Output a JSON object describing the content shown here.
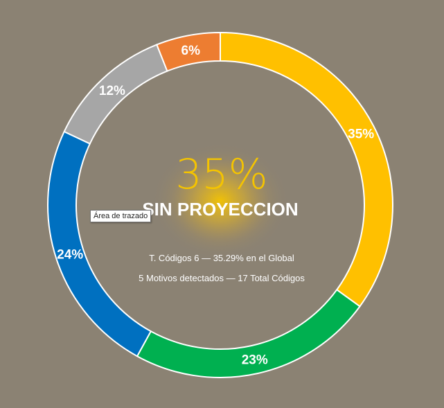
{
  "chart_data": {
    "type": "pie",
    "style": "donut",
    "categories": [
      "",
      "",
      "",
      "",
      ""
    ],
    "values": [
      35,
      23,
      24,
      12,
      6
    ],
    "labels": [
      "35%",
      "23%",
      "24%",
      "12%",
      "6%"
    ],
    "colors": [
      "#ffc000",
      "#00b050",
      "#0070c0",
      "#a6a6a6",
      "#ed7d31"
    ],
    "start_angle_deg": 0,
    "direction": "clockwise",
    "legend": "none"
  },
  "center": {
    "big_value": "35%",
    "title": "SIN PROYECCION",
    "line1": "T. Códigos 6 — 35.29% en el Global",
    "line2": "5 Motivos detectados — 17 Total Códigos"
  },
  "tooltip": {
    "text": "Área de trazado"
  },
  "colors": {
    "background": "#8b8273",
    "glow": "#f5c400",
    "ring_border": "#ffffff"
  }
}
